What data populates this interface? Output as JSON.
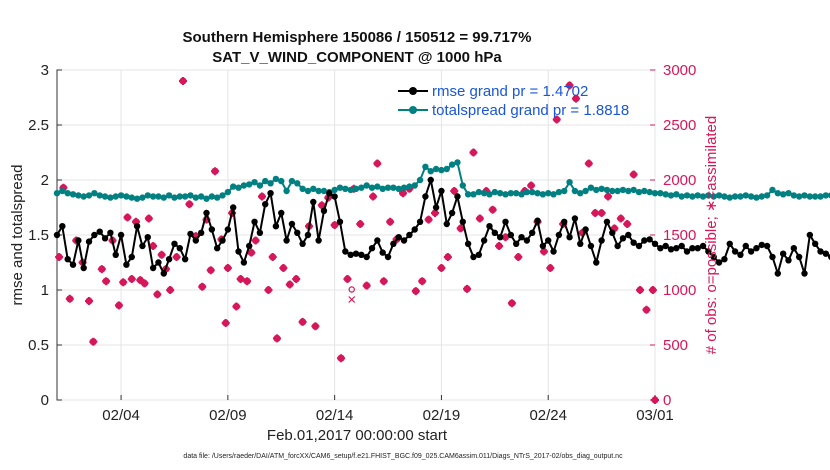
{
  "chart_data": {
    "type": "line",
    "title": "Southern Hemisphere 150086 / 150512 = 99.717%",
    "subtitle": "SAT_V_WIND_COMPONENT @ 1000 hPa",
    "xlabel": "Feb.01,2017 00:00:00 start",
    "ylabel_left": "rmse and totalspread",
    "ylabel_right": "# of obs: o=possible; ∗=assimilated",
    "footnote": "data file: /Users/raeder/DAI/ATM_forcXX/CAM6_setup/f.e21.FHIST_BGC.f09_025.CAM6assim.011/Diags_NTrS_2017-02/obs_diag_output.nc",
    "x_tick_labels": [
      "02/04",
      "02/09",
      "02/14",
      "02/19",
      "02/24",
      "03/01"
    ],
    "x_tick_days": [
      3,
      8,
      13,
      18,
      23,
      28
    ],
    "xlim_days": [
      0,
      28
    ],
    "ylim_left": [
      0,
      3
    ],
    "yticks_left": [
      "0",
      "0.5",
      "1",
      "1.5",
      "2",
      "2.5",
      "3"
    ],
    "ylim_right": [
      0,
      3000
    ],
    "yticks_right": [
      "0",
      "500",
      "1000",
      "1500",
      "2000",
      "2500",
      "3000"
    ],
    "legend": [
      "rmse grand pr = 1.4702",
      "totalspread grand pr = 1.8818"
    ],
    "colors": {
      "rmse": "#000000",
      "totalspread": "#008080",
      "obs": "#d6175a",
      "legend_text": "#1a56d6"
    },
    "x_step_days": 0.25,
    "series": [
      {
        "name": "rmse",
        "axis": "left",
        "values": [
          1.5,
          1.58,
          1.28,
          1.23,
          1.45,
          1.2,
          1.44,
          1.5,
          1.53,
          1.47,
          1.52,
          1.32,
          1.5,
          1.23,
          1.3,
          1.58,
          1.4,
          1.48,
          1.2,
          1.25,
          1.15,
          1.28,
          1.42,
          1.38,
          1.28,
          1.51,
          1.45,
          1.52,
          1.7,
          1.55,
          1.38,
          1.45,
          1.55,
          1.75,
          1.35,
          1.25,
          1.4,
          1.62,
          1.52,
          1.78,
          1.88,
          1.58,
          1.7,
          1.45,
          1.6,
          1.52,
          1.42,
          1.5,
          1.8,
          1.45,
          1.72,
          1.88,
          1.85,
          1.62,
          1.35,
          1.32,
          1.33,
          1.32,
          1.3,
          1.38,
          1.45,
          1.34,
          1.3,
          1.42,
          1.48,
          1.45,
          1.5,
          1.55,
          1.62,
          1.85,
          2.0,
          1.75,
          1.9,
          1.6,
          1.7,
          1.85,
          1.62,
          1.42,
          1.3,
          1.32,
          1.45,
          1.58,
          1.52,
          1.48,
          1.62,
          1.5,
          1.42,
          1.48,
          1.45,
          1.52,
          1.63,
          1.4,
          1.45,
          1.35,
          1.5,
          1.62,
          1.48,
          1.65,
          1.42,
          1.55,
          1.4,
          1.25,
          1.45,
          1.62,
          1.52,
          1.4,
          1.47,
          1.5,
          1.43,
          1.4,
          1.45,
          1.46,
          1.42,
          1.38,
          1.4,
          1.37,
          1.38,
          1.4,
          1.35,
          1.38,
          1.38,
          1.4,
          1.35,
          1.3,
          1.25,
          1.28,
          1.42,
          1.35,
          1.32,
          1.4,
          1.35,
          1.38,
          1.41,
          1.4,
          1.3,
          1.15,
          1.33,
          1.27,
          1.38,
          1.3,
          1.15,
          1.5,
          1.42,
          1.35,
          1.33,
          1.3
        ]
      },
      {
        "name": "totalspread",
        "axis": "left",
        "values": [
          1.88,
          1.9,
          1.88,
          1.87,
          1.86,
          1.85,
          1.86,
          1.88,
          1.86,
          1.85,
          1.84,
          1.85,
          1.86,
          1.85,
          1.84,
          1.83,
          1.84,
          1.86,
          1.85,
          1.85,
          1.84,
          1.86,
          1.84,
          1.85,
          1.85,
          1.86,
          1.84,
          1.85,
          1.83,
          1.85,
          1.84,
          1.86,
          1.89,
          1.94,
          1.93,
          1.95,
          1.96,
          1.98,
          1.95,
          1.99,
          1.97,
          2.01,
          1.99,
          1.9,
          1.99,
          1.97,
          1.92,
          1.9,
          1.92,
          1.9,
          1.9,
          1.89,
          1.91,
          1.93,
          1.92,
          1.91,
          1.92,
          1.93,
          1.95,
          1.93,
          1.94,
          1.92,
          1.93,
          1.93,
          1.92,
          1.93,
          1.94,
          1.95,
          2.0,
          2.12,
          2.08,
          2.1,
          2.09,
          2.1,
          2.14,
          2.16,
          1.95,
          1.87,
          1.87,
          1.89,
          1.88,
          1.87,
          1.89,
          1.88,
          1.87,
          1.88,
          1.88,
          1.87,
          1.89,
          1.89,
          1.88,
          1.87,
          1.88,
          1.87,
          1.89,
          1.9,
          1.98,
          1.9,
          1.88,
          1.9,
          1.93,
          1.91,
          1.92,
          1.91,
          1.9,
          1.9,
          1.91,
          1.9,
          1.91,
          1.89,
          1.9,
          1.89,
          1.88,
          1.88,
          1.87,
          1.86,
          1.87,
          1.85,
          1.86,
          1.85,
          1.86,
          1.85,
          1.86,
          1.85,
          1.86,
          1.85,
          1.84,
          1.85,
          1.85,
          1.86,
          1.85,
          1.84,
          1.85,
          1.86,
          1.91,
          1.88,
          1.87,
          1.88,
          1.86,
          1.85,
          1.86,
          1.85,
          1.85,
          1.85,
          1.86,
          1.86
        ]
      },
      {
        "name": "obs_assimilated",
        "axis": "right",
        "x": [
          0.1,
          0.3,
          0.6,
          0.9,
          1.2,
          1.5,
          1.7,
          2.1,
          2.3,
          2.6,
          2.9,
          3.1,
          3.3,
          3.5,
          3.7,
          3.9,
          4.1,
          4.3,
          4.5,
          4.7,
          4.9,
          5.1,
          5.3,
          5.6,
          5.9,
          6.2,
          6.5,
          6.8,
          7.0,
          7.2,
          7.4,
          7.7,
          7.9,
          8.0,
          8.2,
          8.4,
          8.6,
          8.9,
          9.1,
          9.3,
          9.6,
          9.9,
          10.1,
          10.3,
          10.6,
          10.9,
          11.2,
          11.5,
          11.8,
          12.1,
          12.4,
          12.7,
          13.0,
          13.3,
          13.6,
          13.9,
          14.2,
          14.5,
          14.8,
          15.0,
          15.3,
          15.6,
          15.9,
          16.2,
          16.5,
          16.8,
          17.1,
          17.4,
          17.7,
          18.0,
          18.3,
          18.6,
          18.9,
          19.2,
          19.5,
          19.8,
          20.1,
          20.4,
          20.7,
          21.0,
          21.3,
          21.6,
          21.9,
          22.2,
          22.5,
          22.8,
          23.1,
          23.4,
          23.7,
          24.0,
          24.3,
          24.6,
          24.9,
          25.2,
          25.5,
          25.8,
          26.1,
          26.4,
          26.7,
          27.0,
          27.3,
          27.6,
          27.9,
          28.0
        ],
        "values": [
          1300,
          1930,
          920,
          1450,
          1250,
          900,
          530,
          1190,
          1080,
          1450,
          860,
          1070,
          1660,
          1100,
          1620,
          1090,
          1060,
          1650,
          1400,
          960,
          1320,
          1190,
          1000,
          1300,
          2900,
          1780,
          1490,
          1030,
          1640,
          1180,
          2080,
          1460,
          700,
          1200,
          1700,
          850,
          1100,
          1080,
          1340,
          1450,
          1850,
          1000,
          1300,
          560,
          1200,
          1050,
          1100,
          710,
          1580,
          670,
          1770,
          1840,
          1590,
          380,
          1100,
          1920,
          1600,
          1040,
          1850,
          2150,
          1080,
          1620,
          1460,
          1880,
          1920,
          990,
          1080,
          1640,
          1700,
          1200,
          1300,
          1900,
          1560,
          1010,
          2250,
          1650,
          1900,
          1730,
          1400,
          1480,
          880,
          1300,
          1900,
          1950,
          1620,
          1350,
          1200,
          2550,
          1600,
          2860,
          2740,
          1520,
          2150,
          1700,
          1700,
          1850,
          1560,
          1650,
          1600,
          2050,
          1000,
          820,
          1000,
          0
        ]
      },
      {
        "name": "obs_possible",
        "axis": "right",
        "x": [
          13.8
        ],
        "values": [
          950
        ]
      }
    ]
  }
}
